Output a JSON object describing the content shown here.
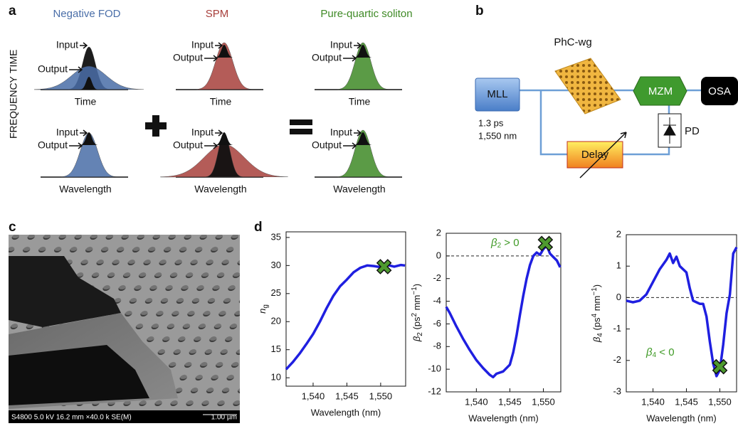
{
  "panel_labels": [
    "a",
    "b",
    "c",
    "d"
  ],
  "panel_a": {
    "columns": [
      {
        "title": "Negative FOD",
        "color": "#4a6ea8"
      },
      {
        "title": "SPM",
        "color": "#a8403c"
      },
      {
        "title": "Pure-quartic soliton",
        "color": "#3f8a26"
      }
    ],
    "row_labels": [
      "FREQUENCY",
      "TIME"
    ],
    "input": "Input",
    "output": "Output",
    "x_labels": [
      "Time",
      "Wavelength"
    ]
  },
  "panel_b": {
    "waveguide": "PhC-wg",
    "laser": "MLL",
    "pulse_width": "1.3 ps",
    "wavelength": "1,550 nm",
    "modulator": "MZM",
    "analyzer": "OSA",
    "detector": "PD",
    "delay": "Delay"
  },
  "panel_c": {
    "caption": "S4800 5.0 kV 16.2 mm ×40.0 k SE(M)",
    "scale": "1.00 µm"
  },
  "chart_data": [
    {
      "type": "line",
      "xlabel": "Wavelength (nm)",
      "ylabel": [
        "n",
        "g"
      ],
      "xlim": [
        1536,
        1553.7
      ],
      "xticks": [
        {
          "value": 1540,
          "label": "1,540"
        },
        {
          "value": 1545,
          "label": "1,545"
        },
        {
          "value": 1550,
          "label": "1,550"
        }
      ],
      "ylim": [
        8.5,
        36
      ],
      "yticks": [
        10,
        15,
        20,
        25,
        30,
        35
      ],
      "series": [
        {
          "color": "#1f1fe0",
          "x": [
            1536,
            1537,
            1538,
            1539,
            1540,
            1541,
            1542,
            1543,
            1544,
            1545,
            1546,
            1547,
            1548,
            1549,
            1550,
            1551,
            1552,
            1553,
            1553.6
          ],
          "values": [
            11.5,
            12.8,
            14.3,
            16,
            17.8,
            20,
            22.4,
            24.6,
            26.3,
            27.5,
            28.8,
            29.6,
            30,
            29.9,
            29.7,
            30.1,
            29.8,
            30.1,
            30
          ]
        }
      ],
      "marker": {
        "x": 1550.5,
        "y": 29.8,
        "color": "#4e9a2e"
      }
    },
    {
      "type": "line",
      "xlabel": "Wavelength (nm)",
      "ylabel": [
        "β",
        "2",
        " (ps",
        "2",
        " mm",
        "−1",
        ")"
      ],
      "xlim": [
        1535.5,
        1552.6
      ],
      "xticks": [
        {
          "value": 1540,
          "label": "1,540"
        },
        {
          "value": 1545,
          "label": "1,545"
        },
        {
          "value": 1550,
          "label": "1,550"
        }
      ],
      "ylim": [
        -12,
        2
      ],
      "yticks": [
        -12,
        -10,
        -8,
        -6,
        -4,
        -2,
        0,
        2
      ],
      "hline": 0,
      "annotation": [
        "β",
        "2",
        " > 0"
      ],
      "annotation_color": "#3f9a26",
      "series": [
        {
          "color": "#1f1fe0",
          "x": [
            1535.5,
            1536,
            1537,
            1538,
            1539,
            1540,
            1541,
            1542,
            1542.5,
            1543,
            1544,
            1545,
            1545.5,
            1546,
            1546.5,
            1547,
            1547.5,
            1548,
            1548.5,
            1549,
            1549.5,
            1550,
            1550.5,
            1551,
            1551.5,
            1552,
            1552.5
          ],
          "values": [
            -4.5,
            -5,
            -6.2,
            -7.3,
            -8.3,
            -9.2,
            -9.9,
            -10.5,
            -10.7,
            -10.4,
            -10.2,
            -9.6,
            -8.5,
            -7,
            -5.2,
            -3.5,
            -2,
            -0.8,
            0,
            0.3,
            0.1,
            0.6,
            0.9,
            0.2,
            -0.1,
            -0.4,
            -1
          ]
        }
      ],
      "marker": {
        "x": 1550.3,
        "y": 1.1,
        "color": "#4e9a2e"
      }
    },
    {
      "type": "line",
      "xlabel": "Wavelength (nm)",
      "ylabel": [
        "β",
        "4",
        " (ps",
        "4",
        " mm",
        "−1",
        ")"
      ],
      "xlim": [
        1536,
        1552.5
      ],
      "xticks": [
        {
          "value": 1540,
          "label": "1,540"
        },
        {
          "value": 1545,
          "label": "1,545"
        },
        {
          "value": 1550,
          "label": "1,550"
        }
      ],
      "ylim": [
        -3,
        2
      ],
      "yticks": [
        -3,
        -2,
        -1,
        0,
        1,
        2
      ],
      "hline": 0,
      "annotation": [
        "β",
        "4",
        " < 0"
      ],
      "annotation_color": "#3f9a26",
      "series": [
        {
          "color": "#1f1fe0",
          "x": [
            1536,
            1537,
            1538,
            1539,
            1540,
            1541,
            1542,
            1542.5,
            1543,
            1543.5,
            1544,
            1545,
            1545.5,
            1546,
            1546.5,
            1547,
            1547.5,
            1548,
            1548.5,
            1549,
            1549.5,
            1550,
            1550.5,
            1551,
            1551.5,
            1552,
            1552.5
          ],
          "values": [
            -0.1,
            -0.15,
            -0.1,
            0.1,
            0.5,
            0.9,
            1.2,
            1.4,
            1.1,
            1.3,
            1,
            0.8,
            0.3,
            -0.1,
            -0.15,
            -0.2,
            -0.2,
            -0.6,
            -1.4,
            -2.1,
            -2.5,
            -2.3,
            -1.5,
            -0.5,
            0.1,
            1.4,
            1.6
          ]
        }
      ],
      "marker": {
        "x": 1550,
        "y": -2.2,
        "color": "#4e9a2e"
      }
    }
  ]
}
